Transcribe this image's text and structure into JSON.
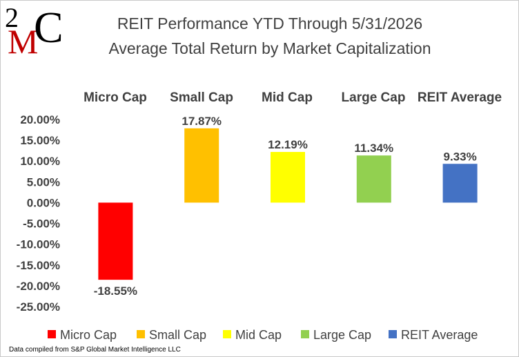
{
  "logo": {
    "text_top": "2",
    "text_mid": "M",
    "text_right": "C"
  },
  "title_line1": "REIT Performance YTD Through 5/31/2026",
  "title_line2": "Average Total Return by Market Capitalization",
  "source_note": "Data compiled from S&P Global Market Intelligence LLC",
  "colors": {
    "micro_cap": "#ff0000",
    "small_cap": "#ffc000",
    "mid_cap": "#ffff00",
    "large_cap": "#92d050",
    "reit_average": "#4472c4",
    "logo_red": "#c00000"
  },
  "chart_data": {
    "type": "bar",
    "categories": [
      "Micro Cap",
      "Small Cap",
      "Mid Cap",
      "Large Cap",
      "REIT Average"
    ],
    "values": [
      -18.55,
      17.87,
      12.19,
      11.34,
      9.33
    ],
    "value_labels": [
      "-18.55%",
      "17.87%",
      "12.19%",
      "11.34%",
      "9.33%"
    ],
    "bar_colors": [
      "#ff0000",
      "#ffc000",
      "#ffff00",
      "#92d050",
      "#4472c4"
    ],
    "ylim": [
      -25,
      20
    ],
    "y_ticks": [
      20,
      15,
      10,
      5,
      0,
      -5,
      -10,
      -15,
      -20,
      -25
    ],
    "y_tick_labels": [
      "20.00%",
      "15.00%",
      "10.00%",
      "5.00%",
      "0.00%",
      "-5.00%",
      "-10.00%",
      "-15.00%",
      "-20.00%",
      "-25.00%"
    ],
    "legend": [
      "Micro Cap",
      "Small Cap",
      "Mid Cap",
      "Large Cap",
      "REIT Average"
    ],
    "legend_position": "bottom",
    "grid": false,
    "xlabel": "",
    "ylabel": ""
  }
}
